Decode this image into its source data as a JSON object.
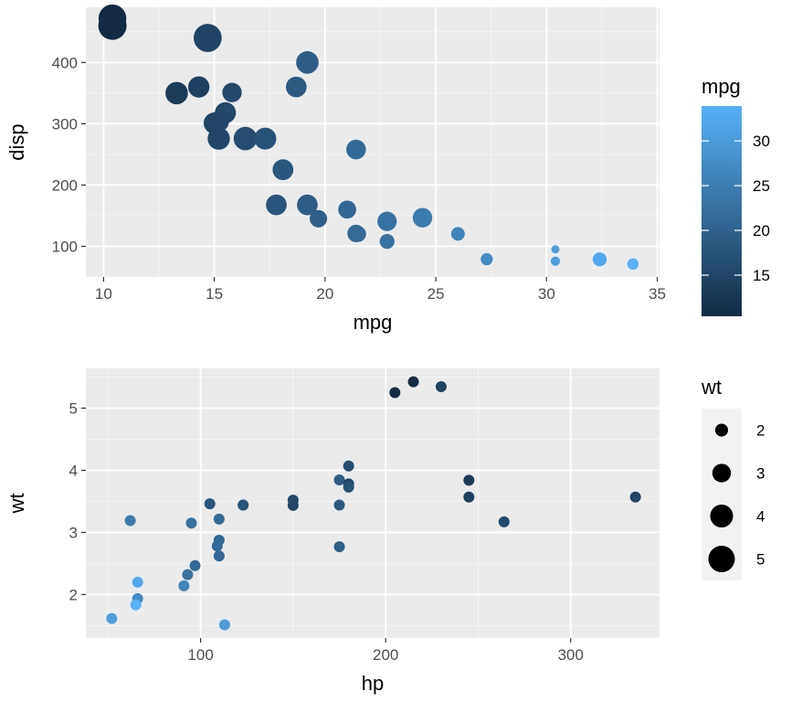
{
  "chart_data": [
    {
      "type": "scatter",
      "xlabel": "mpg",
      "ylabel": "disp",
      "xlim": [
        9.2,
        35.1
      ],
      "ylim": [
        50,
        490
      ],
      "x_ticks": [
        10,
        15,
        20,
        25,
        30,
        35
      ],
      "y_ticks": [
        100,
        200,
        300,
        400
      ],
      "color_legend": {
        "title": "mpg",
        "low_color": "#132b43",
        "high_color": "#56b1f7",
        "range": [
          10.4,
          33.9
        ],
        "ticks": [
          15,
          20,
          25,
          30
        ]
      },
      "size_mapping": "wt",
      "points": [
        {
          "mpg": 21.0,
          "disp": 160,
          "wt": 2.62
        },
        {
          "mpg": 21.0,
          "disp": 160,
          "wt": 2.875
        },
        {
          "mpg": 22.8,
          "disp": 108,
          "wt": 2.32
        },
        {
          "mpg": 21.4,
          "disp": 258,
          "wt": 3.215
        },
        {
          "mpg": 18.7,
          "disp": 360,
          "wt": 3.44
        },
        {
          "mpg": 18.1,
          "disp": 225,
          "wt": 3.46
        },
        {
          "mpg": 14.3,
          "disp": 360,
          "wt": 3.57
        },
        {
          "mpg": 24.4,
          "disp": 146.7,
          "wt": 3.19
        },
        {
          "mpg": 22.8,
          "disp": 140.8,
          "wt": 3.15
        },
        {
          "mpg": 19.2,
          "disp": 167.6,
          "wt": 3.44
        },
        {
          "mpg": 17.8,
          "disp": 167.6,
          "wt": 3.44
        },
        {
          "mpg": 16.4,
          "disp": 275.8,
          "wt": 4.07
        },
        {
          "mpg": 17.3,
          "disp": 275.8,
          "wt": 3.73
        },
        {
          "mpg": 15.2,
          "disp": 275.8,
          "wt": 3.78
        },
        {
          "mpg": 10.4,
          "disp": 472,
          "wt": 5.25
        },
        {
          "mpg": 10.4,
          "disp": 460,
          "wt": 5.424
        },
        {
          "mpg": 14.7,
          "disp": 440,
          "wt": 5.345
        },
        {
          "mpg": 32.4,
          "disp": 78.7,
          "wt": 2.2
        },
        {
          "mpg": 30.4,
          "disp": 75.7,
          "wt": 1.615
        },
        {
          "mpg": 33.9,
          "disp": 71.1,
          "wt": 1.835
        },
        {
          "mpg": 21.5,
          "disp": 120.1,
          "wt": 2.465
        },
        {
          "mpg": 15.5,
          "disp": 318,
          "wt": 3.52
        },
        {
          "mpg": 15.2,
          "disp": 304,
          "wt": 3.435
        },
        {
          "mpg": 13.3,
          "disp": 350,
          "wt": 3.84
        },
        {
          "mpg": 19.2,
          "disp": 400,
          "wt": 3.845
        },
        {
          "mpg": 27.3,
          "disp": 79,
          "wt": 1.935
        },
        {
          "mpg": 26.0,
          "disp": 120.3,
          "wt": 2.14
        },
        {
          "mpg": 30.4,
          "disp": 95.1,
          "wt": 1.513
        },
        {
          "mpg": 15.8,
          "disp": 351,
          "wt": 3.17
        },
        {
          "mpg": 19.7,
          "disp": 145,
          "wt": 2.77
        },
        {
          "mpg": 15.0,
          "disp": 301,
          "wt": 3.57
        },
        {
          "mpg": 21.4,
          "disp": 121,
          "wt": 2.78
        }
      ]
    },
    {
      "type": "scatter",
      "xlabel": "hp",
      "ylabel": "wt",
      "xlim": [
        38,
        348
      ],
      "ylim": [
        1.3,
        5.64
      ],
      "x_ticks": [
        100,
        200,
        300
      ],
      "y_ticks": [
        2,
        3,
        4,
        5
      ],
      "size_legend": {
        "title": "wt",
        "ticks": [
          2,
          3,
          4,
          5
        ]
      },
      "color_mapping": "mpg",
      "points": [
        {
          "hp": 110,
          "wt": 2.62,
          "mpg": 21.0
        },
        {
          "hp": 110,
          "wt": 2.875,
          "mpg": 21.0
        },
        {
          "hp": 93,
          "wt": 2.32,
          "mpg": 22.8
        },
        {
          "hp": 110,
          "wt": 3.215,
          "mpg": 21.4
        },
        {
          "hp": 175,
          "wt": 3.44,
          "mpg": 18.7
        },
        {
          "hp": 105,
          "wt": 3.46,
          "mpg": 18.1
        },
        {
          "hp": 245,
          "wt": 3.57,
          "mpg": 14.3
        },
        {
          "hp": 62,
          "wt": 3.19,
          "mpg": 24.4
        },
        {
          "hp": 95,
          "wt": 3.15,
          "mpg": 22.8
        },
        {
          "hp": 123,
          "wt": 3.44,
          "mpg": 19.2
        },
        {
          "hp": 123,
          "wt": 3.44,
          "mpg": 17.8
        },
        {
          "hp": 180,
          "wt": 4.07,
          "mpg": 16.4
        },
        {
          "hp": 180,
          "wt": 3.73,
          "mpg": 17.3
        },
        {
          "hp": 180,
          "wt": 3.78,
          "mpg": 15.2
        },
        {
          "hp": 205,
          "wt": 5.25,
          "mpg": 10.4
        },
        {
          "hp": 215,
          "wt": 5.424,
          "mpg": 10.4
        },
        {
          "hp": 230,
          "wt": 5.345,
          "mpg": 14.7
        },
        {
          "hp": 66,
          "wt": 2.2,
          "mpg": 32.4
        },
        {
          "hp": 52,
          "wt": 1.615,
          "mpg": 30.4
        },
        {
          "hp": 65,
          "wt": 1.835,
          "mpg": 33.9
        },
        {
          "hp": 97,
          "wt": 2.465,
          "mpg": 21.5
        },
        {
          "hp": 150,
          "wt": 3.52,
          "mpg": 15.5
        },
        {
          "hp": 150,
          "wt": 3.435,
          "mpg": 15.2
        },
        {
          "hp": 245,
          "wt": 3.84,
          "mpg": 13.3
        },
        {
          "hp": 175,
          "wt": 3.845,
          "mpg": 19.2
        },
        {
          "hp": 66,
          "wt": 1.935,
          "mpg": 27.3
        },
        {
          "hp": 91,
          "wt": 2.14,
          "mpg": 26.0
        },
        {
          "hp": 113,
          "wt": 1.513,
          "mpg": 30.4
        },
        {
          "hp": 264,
          "wt": 3.17,
          "mpg": 15.8
        },
        {
          "hp": 175,
          "wt": 2.77,
          "mpg": 19.7
        },
        {
          "hp": 335,
          "wt": 3.57,
          "mpg": 15.0
        },
        {
          "hp": 109,
          "wt": 2.78,
          "mpg": 21.4
        }
      ]
    }
  ]
}
